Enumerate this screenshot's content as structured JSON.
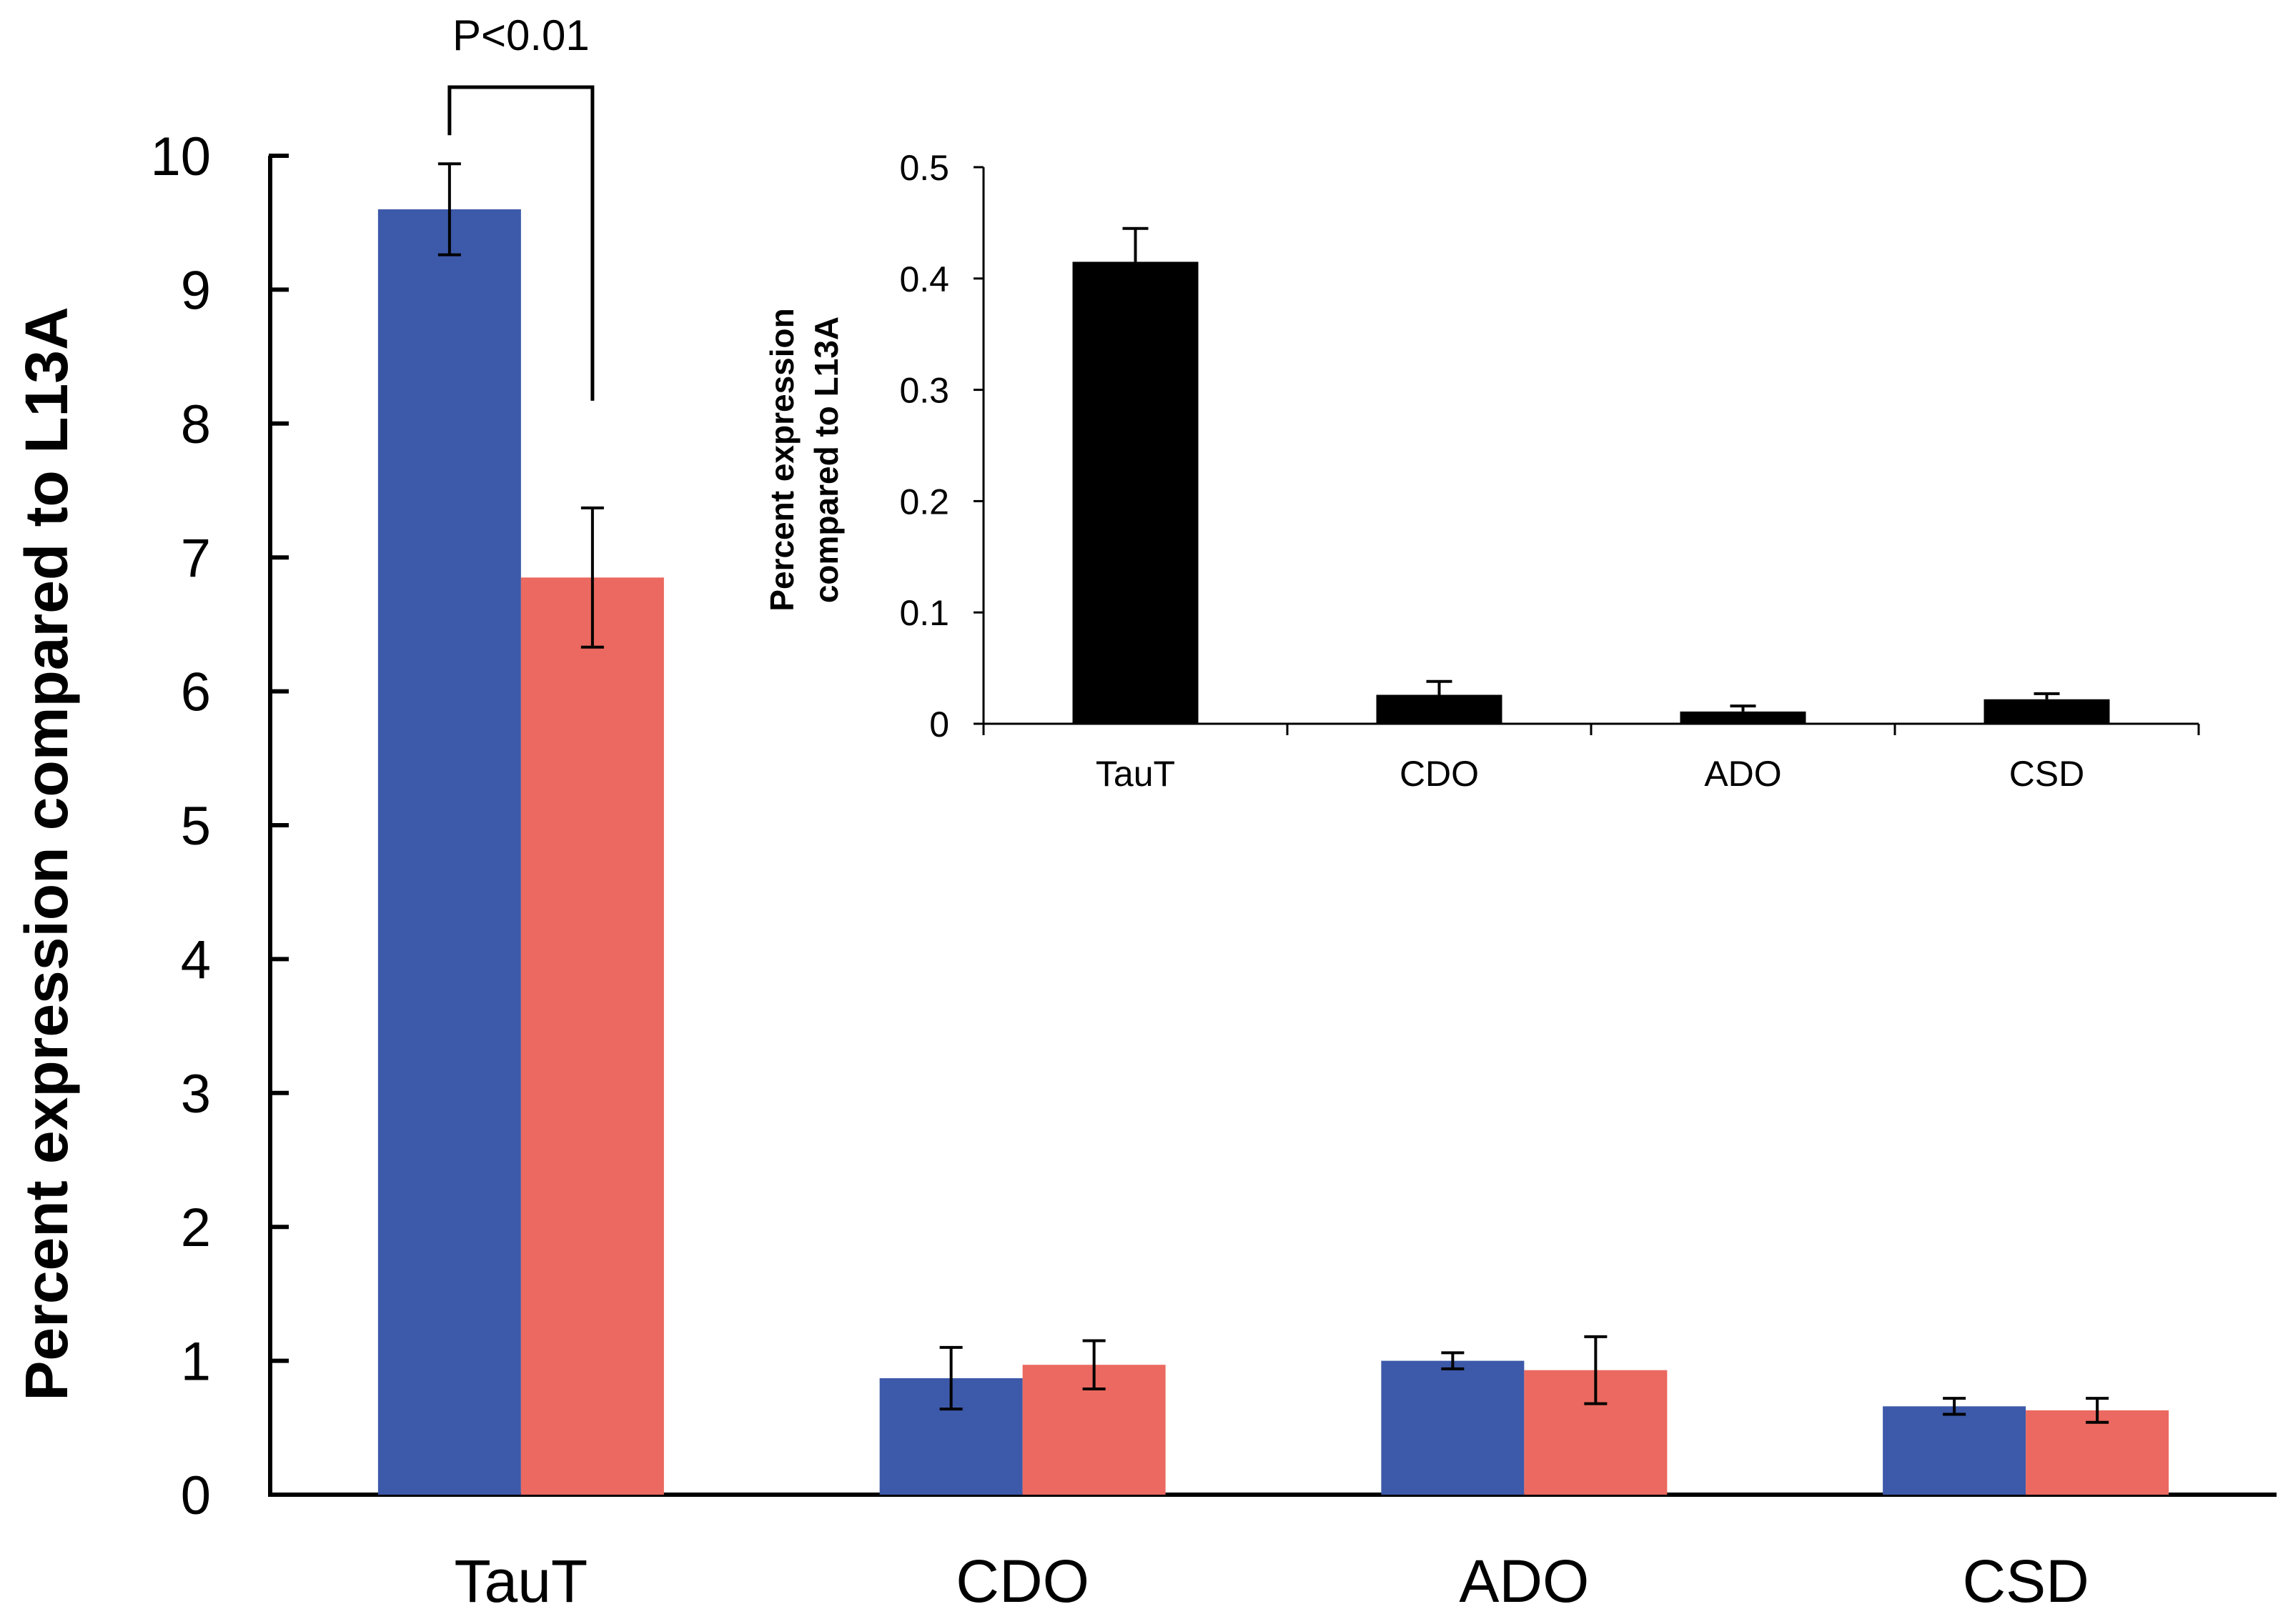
{
  "chart_data": [
    {
      "type": "bar",
      "categories": [
        "TauT",
        "CDO",
        "ADO",
        "CSD"
      ],
      "series": [
        {
          "values": [
            9.6,
            0.87,
            1.0,
            0.66
          ],
          "errors": [
            0.34,
            0.23,
            0.06,
            0.06
          ],
          "color": "#3d59a9"
        },
        {
          "values": [
            6.85,
            0.97,
            0.93,
            0.63
          ],
          "errors": [
            0.52,
            0.18,
            0.25,
            0.09
          ],
          "color": "#eb6960"
        }
      ],
      "ylabel": "Percent expression compared to L13A",
      "ylim": [
        0,
        10
      ],
      "yticks": [
        "0",
        "1",
        "2",
        "3",
        "4",
        "5",
        "6",
        "7",
        "8",
        "9",
        "10"
      ],
      "annotation": {
        "text": "P<0.01",
        "between": [
          "TauT series 1",
          "TauT series 2"
        ]
      },
      "grid": false,
      "legend": "none"
    },
    {
      "type": "bar",
      "categories": [
        "TauT",
        "CDO",
        "ADO",
        "CSD"
      ],
      "series": [
        {
          "values": [
            0.415,
            0.026,
            0.011,
            0.022
          ],
          "errors": [
            0.03,
            0.012,
            0.005,
            0.005
          ],
          "color": "#000000"
        }
      ],
      "ylabel_lines": [
        "Percent expression",
        "compared to L13A"
      ],
      "ylim": [
        0,
        0.5
      ],
      "yticks": [
        "0",
        "0.1",
        "0.2",
        "0.3",
        "0.4",
        "0.5"
      ],
      "grid": false,
      "legend": "none"
    }
  ]
}
